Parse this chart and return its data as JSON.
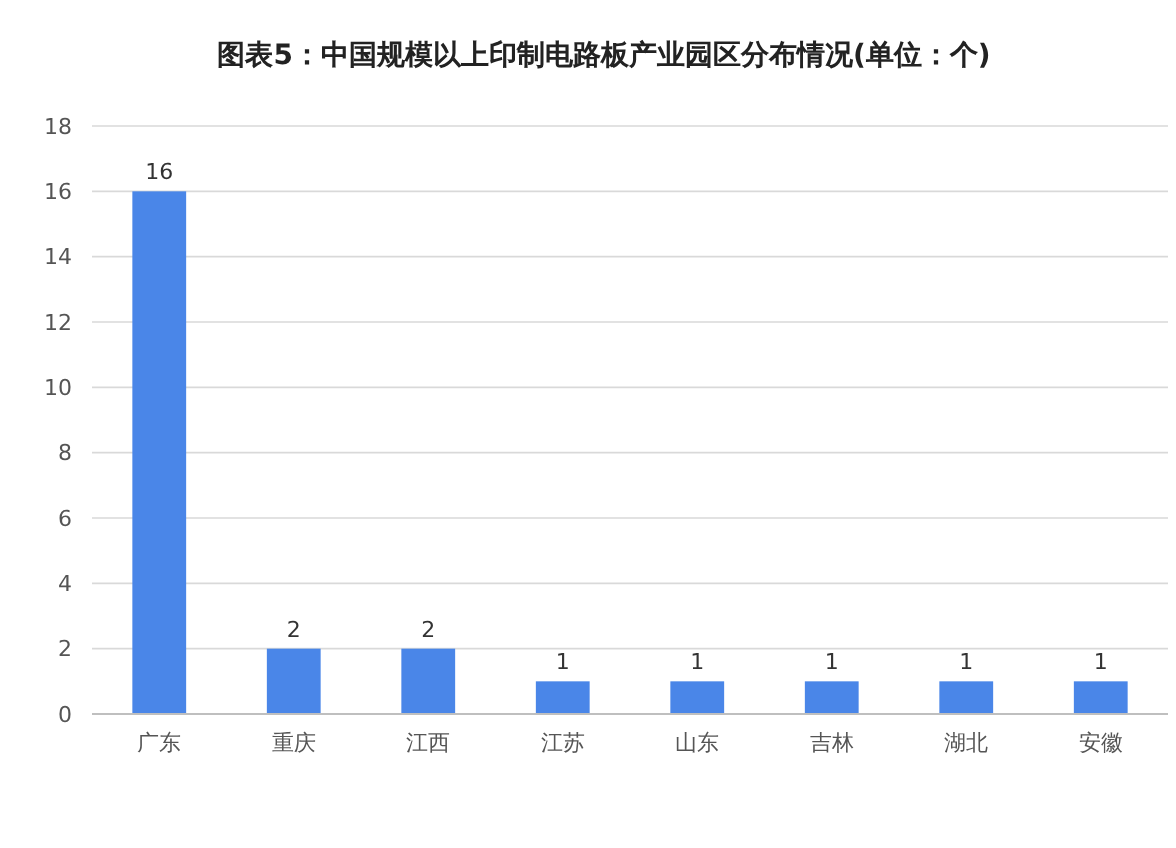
{
  "chart_data": {
    "type": "bar",
    "title": "图表5：中国规模以上印制电路板产业园区分布情况(单位：个)",
    "categories": [
      "广东",
      "重庆",
      "江西",
      "江苏",
      "山东",
      "吉林",
      "湖北",
      "安徽"
    ],
    "values": [
      16,
      2,
      2,
      1,
      1,
      1,
      1,
      1
    ],
    "color": "#4a86e8",
    "ylim": [
      0,
      18
    ],
    "yticks": [
      0,
      2,
      4,
      6,
      8,
      10,
      12,
      14,
      16,
      18
    ],
    "grid": "y",
    "data_labels": true
  }
}
